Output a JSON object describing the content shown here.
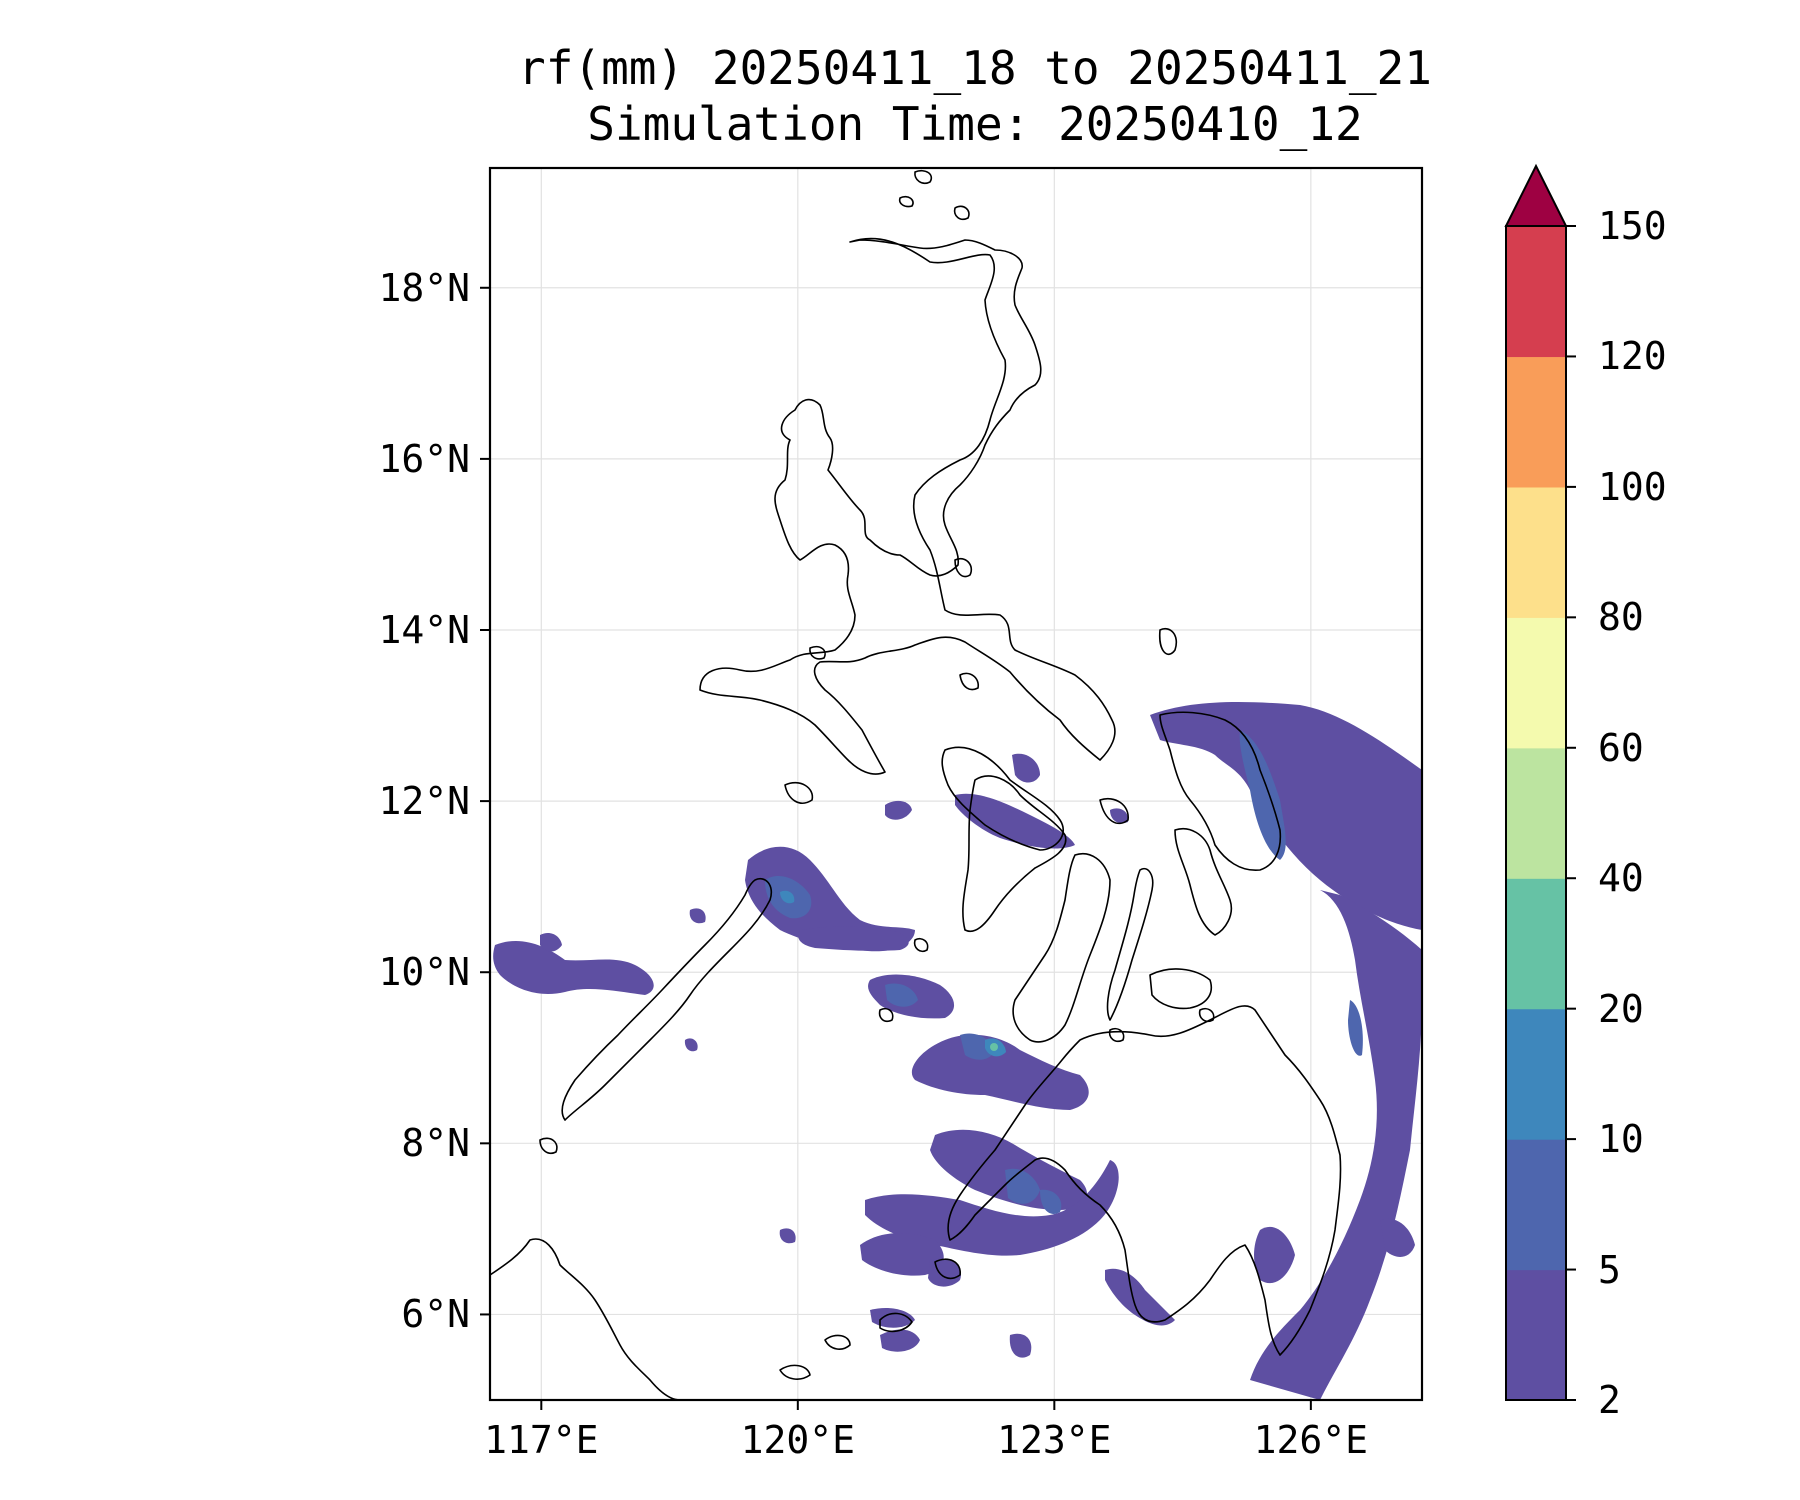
{
  "title": {
    "line1": "rf(mm) 20250411_18 to 20250411_21",
    "line2": "Simulation Time: 20250410_12"
  },
  "map": {
    "region": "Philippines",
    "lon_range": [
      116.4,
      127.3
    ],
    "lat_range": [
      5.0,
      19.4
    ],
    "grid": true,
    "coastlines": true,
    "lat_ticks": [
      {
        "value": 18,
        "label": "18°N"
      },
      {
        "value": 16,
        "label": "16°N"
      },
      {
        "value": 14,
        "label": "14°N"
      },
      {
        "value": 12,
        "label": "12°N"
      },
      {
        "value": 10,
        "label": "10°N"
      },
      {
        "value": 8,
        "label": "8°N"
      },
      {
        "value": 6,
        "label": "6°N"
      }
    ],
    "lon_ticks": [
      {
        "value": 117,
        "label": "117°E"
      },
      {
        "value": 120,
        "label": "120°E"
      },
      {
        "value": 123,
        "label": "123°E"
      },
      {
        "value": 126,
        "label": "126°E"
      }
    ],
    "rain_field": {
      "dominant_class": "2-5",
      "secondary_class": "5-10",
      "occasional_class": "10-20",
      "max_class": "20-40"
    }
  },
  "colorbar": {
    "orientation": "vertical",
    "extend": "max",
    "extend_color": "#9e0142",
    "levels": [
      "2",
      "5",
      "10",
      "20",
      "40",
      "60",
      "80",
      "100",
      "120",
      "150"
    ],
    "colors": [
      "#5e4fa2",
      "#4e66ae",
      "#3e87bc",
      "#66c2a5",
      "#bce4a0",
      "#f4faae",
      "#fde08b",
      "#f99d59",
      "#d53e4f"
    ]
  }
}
